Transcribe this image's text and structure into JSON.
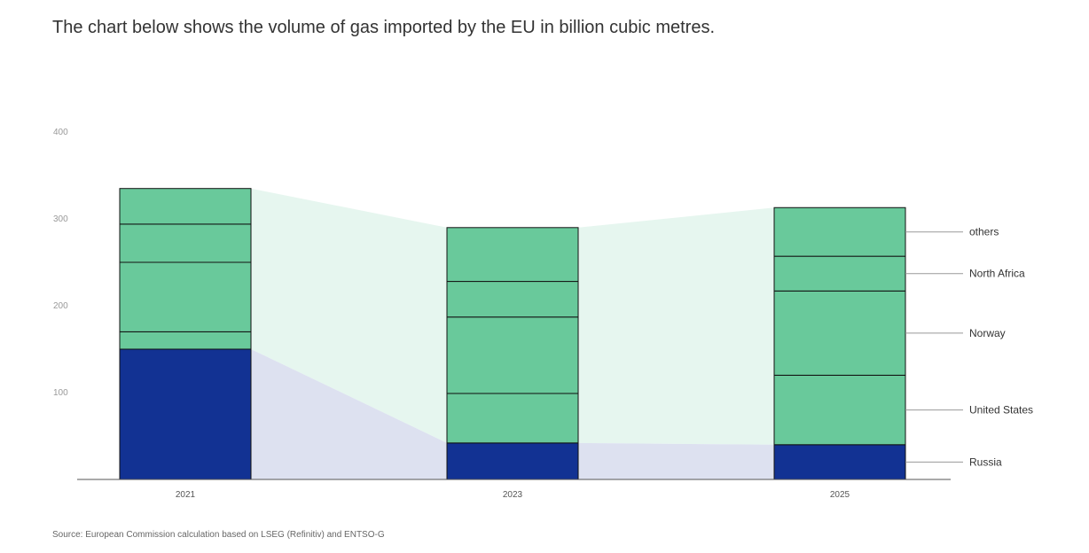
{
  "heading": "The chart below shows the volume of gas imported by the EU in billion cubic metres.",
  "source": "Source: European Commission calculation based on LSEG (Refinitiv) and ENTSO-G",
  "chart_data": {
    "type": "bar",
    "stacked": true,
    "categories": [
      "2021",
      "2023",
      "2025"
    ],
    "ylim": [
      0,
      400
    ],
    "yticks": [
      "100",
      "200",
      "300",
      "400"
    ],
    "ytick_values": [
      100,
      200,
      300,
      400
    ],
    "series": [
      {
        "name": "Russia",
        "values": [
          150,
          42,
          40
        ],
        "color": "#123293"
      },
      {
        "name": "United States",
        "values": [
          20,
          57,
          80
        ],
        "color": "#69c99b"
      },
      {
        "name": "Norway",
        "values": [
          80,
          88,
          97
        ],
        "color": "#69c99b"
      },
      {
        "name": "North Africa",
        "values": [
          44,
          41,
          40
        ],
        "color": "#69c99b"
      },
      {
        "name": "others",
        "values": [
          41,
          62,
          56
        ],
        "color": "#69c99b"
      }
    ],
    "band_colors": {
      "russia": "#dde1f0",
      "others": "#e6f6ef"
    },
    "legend_position": "right"
  }
}
